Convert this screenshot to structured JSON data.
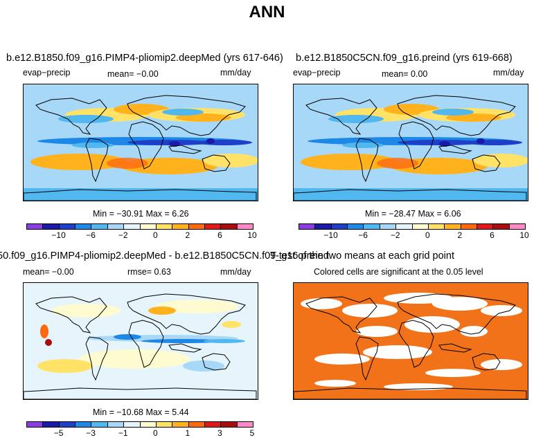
{
  "figure_title": "ANN",
  "colors": {
    "cmap": [
      "#8a3de0",
      "#1a1aa8",
      "#1e3fc8",
      "#1e88e6",
      "#50b8ee",
      "#a8d8f8",
      "#e6f4fc",
      "#fffbd0",
      "#ffe266",
      "#ffb21c",
      "#ff6a10",
      "#e01818",
      "#a80e0e",
      "#ff88c8"
    ],
    "significant": "#f27219",
    "coast": "#000000"
  },
  "chart_data": [
    {
      "type": "heatmap",
      "title": "b.e12.B1850.f09_g16.PIMP4-pliomip2.deepMed (yrs 617-646)",
      "left_label": "evap−precip",
      "center_label": "mean=   −0.00",
      "units": "mm/day",
      "stats": "Min = −30.91  Max =    6.26",
      "colorbar_ticks": [
        "−10",
        "−6",
        "−2",
        "0",
        "2",
        "6",
        "10"
      ],
      "min": -30.91,
      "max": 6.26,
      "mean": -0.0
    },
    {
      "type": "heatmap",
      "title": "b.e12.B1850C5CN.f09_g16.preind (yrs 619-668)",
      "left_label": "evap−precip",
      "center_label": "mean=    0.00",
      "units": "mm/day",
      "stats": "Min = −28.47  Max =    6.06",
      "colorbar_ticks": [
        "−10",
        "−6",
        "−2",
        "0",
        "2",
        "6",
        "10"
      ],
      "min": -28.47,
      "max": 6.06,
      "mean": 0.0
    },
    {
      "type": "heatmap",
      "title": "50.f09_g16.PIMP4-pliomip2.deepMed - b.e12.B1850C5CN.f09_g16.preind",
      "left_label": "mean=   −0.00",
      "center_label": "rmse=    0.63",
      "units": "mm/day",
      "stats": "Min = −10.68  Max =    5.44",
      "colorbar_ticks": [
        "−5",
        "−3",
        "−1",
        "0",
        "1",
        "3",
        "5"
      ],
      "min": -10.68,
      "max": 5.44,
      "mean": -0.0,
      "rmse": 0.63
    },
    {
      "type": "heatmap",
      "title": "T-test of the two means at each grid point",
      "subtitle": "Colored cells are significant at the 0.05 level"
    }
  ]
}
